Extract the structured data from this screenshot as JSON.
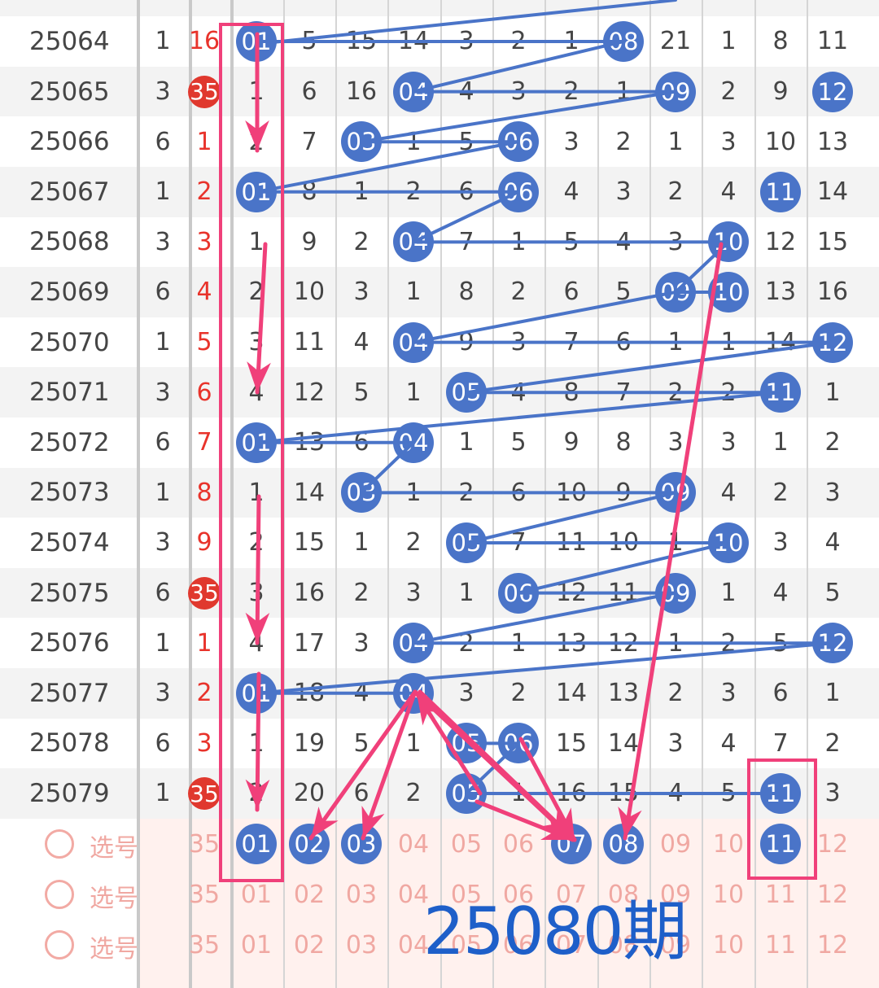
{
  "issues": [
    "25064",
    "25065",
    "25066",
    "25067",
    "25068",
    "25069",
    "25070",
    "25071",
    "25072",
    "25073",
    "25074",
    "25075",
    "25076",
    "25077",
    "25078",
    "25079"
  ],
  "col1": [
    "1",
    "3",
    "6",
    "1",
    "3",
    "6",
    "1",
    "3",
    "6",
    "1",
    "3",
    "6",
    "1",
    "3",
    "6",
    "1"
  ],
  "col2": [
    "16",
    "35",
    "1",
    "2",
    "3",
    "4",
    "5",
    "6",
    "7",
    "8",
    "9",
    "35",
    "1",
    "2",
    "3",
    "35"
  ],
  "main_rows": [
    [
      "01",
      "5",
      "15",
      "14",
      "3",
      "2",
      "1",
      "08",
      "21",
      "1",
      "8",
      "11"
    ],
    [
      "1",
      "6",
      "16",
      "04",
      "4",
      "3",
      "2",
      "1",
      "09",
      "2",
      "9",
      "12"
    ],
    [
      "2",
      "7",
      "03",
      "1",
      "5",
      "06",
      "3",
      "2",
      "1",
      "3",
      "10",
      "13"
    ],
    [
      "01",
      "8",
      "1",
      "2",
      "6",
      "06",
      "4",
      "3",
      "2",
      "4",
      "11",
      "14"
    ],
    [
      "1",
      "9",
      "2",
      "04",
      "7",
      "1",
      "5",
      "4",
      "3",
      "10",
      "12",
      "15"
    ],
    [
      "2",
      "10",
      "3",
      "1",
      "8",
      "2",
      "6",
      "5",
      "09",
      "10",
      "13",
      "16"
    ],
    [
      "3",
      "11",
      "4",
      "04",
      "9",
      "3",
      "7",
      "6",
      "1",
      "1",
      "14",
      "12"
    ],
    [
      "4",
      "12",
      "5",
      "1",
      "05",
      "4",
      "8",
      "7",
      "2",
      "2",
      "11",
      "1"
    ],
    [
      "01",
      "13",
      "6",
      "04",
      "1",
      "5",
      "9",
      "8",
      "3",
      "3",
      "1",
      "2"
    ],
    [
      "1",
      "14",
      "03",
      "1",
      "2",
      "6",
      "10",
      "9",
      "09",
      "4",
      "2",
      "3"
    ],
    [
      "2",
      "15",
      "1",
      "2",
      "05",
      "7",
      "11",
      "10",
      "1",
      "10",
      "3",
      "4"
    ],
    [
      "3",
      "16",
      "2",
      "3",
      "1",
      "06",
      "12",
      "11",
      "09",
      "1",
      "4",
      "5"
    ],
    [
      "4",
      "17",
      "3",
      "04",
      "2",
      "1",
      "13",
      "12",
      "1",
      "2",
      "5",
      "12"
    ],
    [
      "01",
      "18",
      "4",
      "04",
      "3",
      "2",
      "14",
      "13",
      "2",
      "3",
      "6",
      "1"
    ],
    [
      "1",
      "19",
      "5",
      "1",
      "05",
      "06",
      "15",
      "14",
      "3",
      "4",
      "7",
      "2"
    ],
    [
      "2",
      "20",
      "6",
      "2",
      "05",
      "1",
      "16",
      "15",
      "4",
      "5",
      "11",
      "3"
    ]
  ],
  "pick_label": "选号",
  "pick_nums": [
    "35",
    "01",
    "02",
    "03",
    "04",
    "05",
    "06",
    "07",
    "08",
    "09",
    "10",
    "11",
    "12"
  ],
  "prediction_balls": [
    "01",
    "02",
    "03",
    "07",
    "08",
    "11"
  ],
  "period_label": "25080期",
  "colors": {
    "ball": "#4a74c8",
    "red": "#e0382e",
    "arrow": "#f0407a",
    "line": "#4a74c8",
    "period": "#1e5fc9"
  }
}
